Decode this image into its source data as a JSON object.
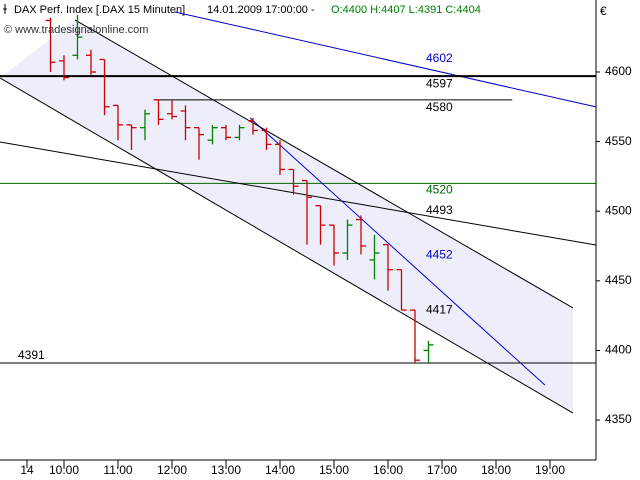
{
  "chart_data": {
    "type": "ohlc",
    "title": "DAX Perf. Index [.DAX  15 Minuten]",
    "subtitle": "14.01.2009 17:00:00 -",
    "quote": "O:4400 H:4407 L:4391 C:4404",
    "source": "© www.tradesignalonline.com",
    "y_label": "€",
    "up_color": "#008000",
    "down_color": "#cc0000",
    "x": [
      9.75,
      10.0,
      10.25,
      10.5,
      10.75,
      11.0,
      11.25,
      11.5,
      11.75,
      12.0,
      12.25,
      12.5,
      12.75,
      13.0,
      13.25,
      13.5,
      13.75,
      14.0,
      14.25,
      14.5,
      14.75,
      15.0,
      15.25,
      15.5,
      15.75,
      16.0,
      16.25,
      16.5,
      16.75
    ],
    "open": [
      4637,
      4608,
      4612,
      4612,
      4609,
      4576,
      4562,
      4560,
      4580,
      4570,
      4572,
      4560,
      4551,
      4560,
      4553,
      4565,
      4558,
      4548,
      4530,
      4522,
      4504,
      4490,
      4470,
      4494,
      4465,
      4476,
      4458,
      4429,
      4400
    ],
    "high": [
      4639,
      4612,
      4641,
      4616,
      4609,
      4576,
      4562,
      4573,
      4580,
      4580,
      4576,
      4560,
      4562,
      4562,
      4562,
      4567,
      4560,
      4551,
      4530,
      4522,
      4504,
      4490,
      4494,
      4497,
      4483,
      4476,
      4458,
      4429,
      4407
    ],
    "low": [
      4600,
      4594,
      4609,
      4598,
      4569,
      4551,
      4544,
      4551,
      4562,
      4566,
      4551,
      4537,
      4548,
      4551,
      4551,
      4555,
      4544,
      4526,
      4512,
      4476,
      4476,
      4461,
      4465,
      4469,
      4451,
      4443,
      4429,
      4391,
      4391
    ],
    "close": [
      4607,
      4596,
      4625,
      4600,
      4575,
      4562,
      4560,
      4570,
      4566,
      4568,
      4560,
      4555,
      4560,
      4553,
      4560,
      4558,
      4548,
      4530,
      4518,
      4510,
      4490,
      4470,
      4490,
      4475,
      4470,
      4458,
      4429,
      4393,
      4404
    ],
    "xlim": [
      8.815,
      19.852
    ],
    "ylim": [
      4321.3,
      4651.7
    ],
    "xticks": [
      {
        "value": 9.315,
        "label": "14"
      },
      {
        "value": 10,
        "label": "10:00"
      },
      {
        "value": 11,
        "label": "11:00"
      },
      {
        "value": 12,
        "label": "12:00"
      },
      {
        "value": 13,
        "label": "13:00"
      },
      {
        "value": 14,
        "label": "14:00"
      },
      {
        "value": 15,
        "label": "15:00"
      },
      {
        "value": 16,
        "label": "16:00"
      },
      {
        "value": 17,
        "label": "17:00"
      },
      {
        "value": 18,
        "label": "18:00"
      },
      {
        "value": 19,
        "label": "19:00"
      }
    ],
    "yticks": [
      4350,
      4400,
      4450,
      4500,
      4550,
      4600
    ],
    "channel": [
      [
        10.204,
        4637.4
      ],
      [
        19.426,
        4430.5
      ],
      [
        19.426,
        4355.0
      ],
      [
        8.815,
        4595.7
      ]
    ],
    "lines": [
      {
        "label": "4602",
        "color": "#0000cc",
        "x": [
          12.056,
          19.852
        ],
        "y": [
          4643.1,
          4574.9
        ]
      },
      {
        "label": "4597",
        "color": "#000000",
        "x": [
          8.815,
          19.852
        ],
        "y": [
          4597,
          4597
        ]
      },
      {
        "label": "4580",
        "color": "#000000",
        "x": [
          11.7,
          18.3
        ],
        "y": [
          4580,
          4580
        ]
      },
      {
        "label": "4520",
        "color": "#006600",
        "x": [
          8.815,
          19.852
        ],
        "y": [
          4520,
          4520
        ]
      },
      {
        "label": "4493",
        "color": "#000000",
        "x": [
          8.815,
          19.852
        ],
        "y": [
          4549.7,
          4475.7
        ]
      },
      {
        "label": "4452",
        "color": "#0000cc",
        "x": [
          13.444,
          18.907
        ],
        "y": [
          4567.0,
          4375.1
        ]
      },
      {
        "label": "4417",
        "color": "#000000",
        "x": [
          8.815,
          19.426
        ],
        "y": [
          4595.7,
          4355.0
        ]
      },
      {
        "label": "4391",
        "color": "#000000",
        "x": [
          8.815,
          19.852
        ],
        "y": [
          4391,
          4391
        ]
      },
      {
        "color": "#000000",
        "x": [
          10.204,
          19.426
        ],
        "y": [
          4637.4,
          4430.5
        ]
      }
    ]
  }
}
